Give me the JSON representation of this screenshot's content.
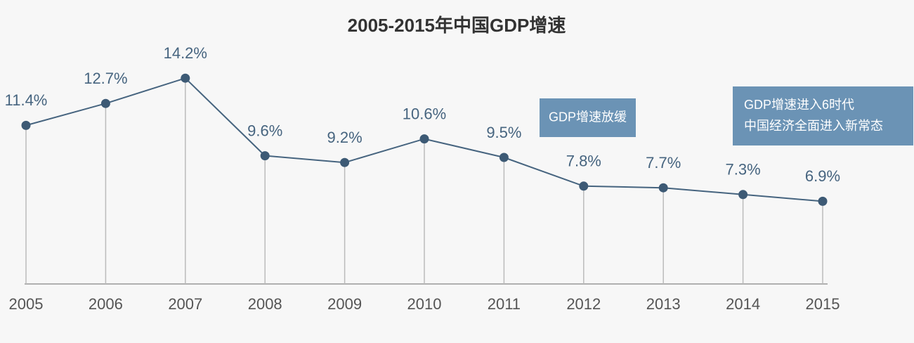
{
  "chart_data": {
    "type": "line",
    "title": "2005-2015年中国GDP增速",
    "categories": [
      "2005",
      "2006",
      "2007",
      "2008",
      "2009",
      "2010",
      "2011",
      "2012",
      "2013",
      "2014",
      "2015"
    ],
    "values": [
      11.4,
      12.7,
      14.2,
      9.6,
      9.2,
      10.6,
      9.5,
      7.8,
      7.7,
      7.3,
      6.9
    ],
    "value_labels": [
      "11.4%",
      "12.7%",
      "14.2%",
      "9.6%",
      "9.2%",
      "10.6%",
      "9.5%",
      "7.8%",
      "7.7%",
      "7.3%",
      "6.9%"
    ],
    "color": "#46647f",
    "ylim": [
      2,
      15
    ],
    "annotations": [
      {
        "lines": [
          "GDP增速放缓"
        ]
      },
      {
        "lines": [
          "GDP增速进入6时代",
          "中国经济全面进入新常态"
        ]
      }
    ]
  }
}
